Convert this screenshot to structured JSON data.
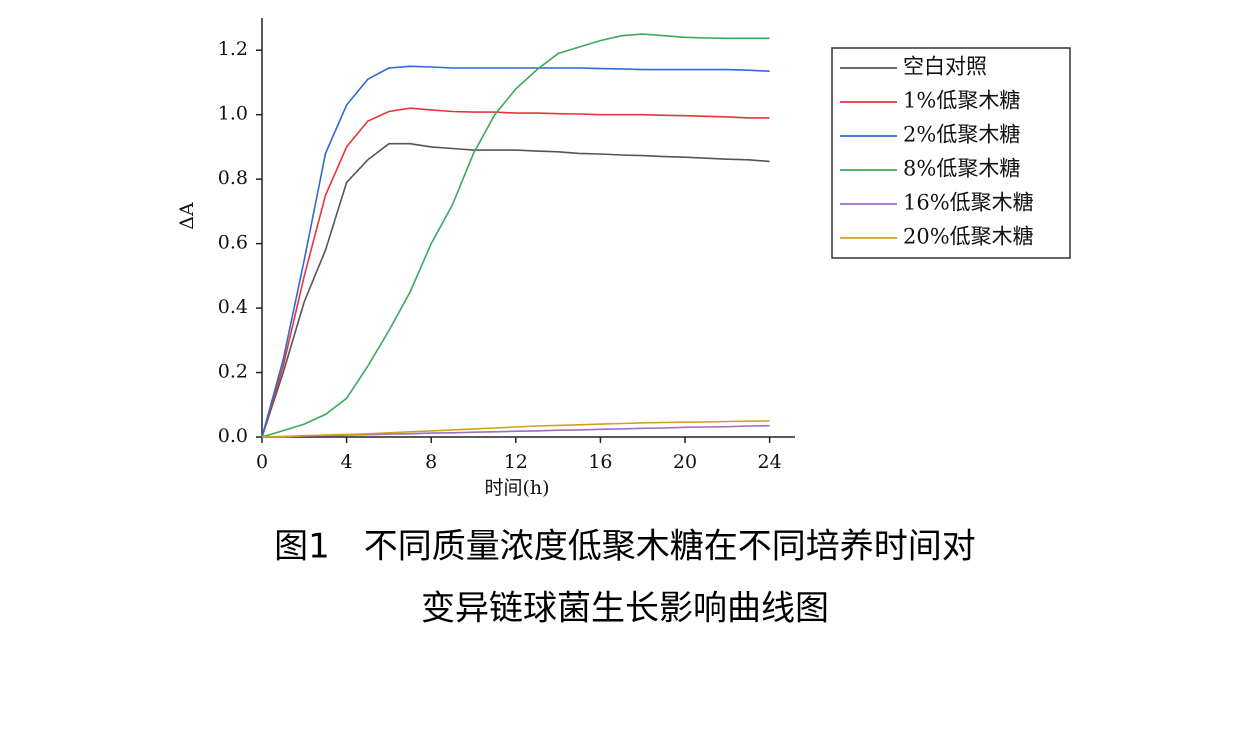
{
  "chart_data": {
    "type": "line",
    "xlabel": "时间(h)",
    "ylabel": "ΔA",
    "x": [
      0,
      1,
      2,
      3,
      4,
      5,
      6,
      7,
      8,
      9,
      10,
      11,
      12,
      13,
      14,
      15,
      16,
      17,
      18,
      19,
      20,
      21,
      22,
      23,
      24
    ],
    "xlim": [
      0,
      25.2
    ],
    "ylim": [
      0,
      1.3
    ],
    "xticks": [
      0,
      4,
      8,
      12,
      16,
      20,
      24
    ],
    "yticks": [
      {
        "value": 0,
        "label": "0.0"
      },
      {
        "value": 0.2,
        "label": "0.2"
      },
      {
        "value": 0.4,
        "label": "0.4"
      },
      {
        "value": 0.6,
        "label": "0.6"
      },
      {
        "value": 0.8,
        "label": "0.8"
      },
      {
        "value": 1.0,
        "label": "1.0"
      },
      {
        "value": 1.2,
        "label": "1.2"
      }
    ],
    "series": [
      {
        "name": "空白对照",
        "color": "#555555",
        "values": [
          0,
          0.2,
          0.42,
          0.58,
          0.79,
          0.86,
          0.91,
          0.91,
          0.9,
          0.895,
          0.89,
          0.89,
          0.89,
          0.887,
          0.885,
          0.88,
          0.878,
          0.875,
          0.873,
          0.87,
          0.868,
          0.865,
          0.862,
          0.86,
          0.855
        ]
      },
      {
        "name": "1%低聚木糖",
        "color": "#e8343a",
        "values": [
          0,
          0.22,
          0.5,
          0.75,
          0.9,
          0.98,
          1.01,
          1.02,
          1.015,
          1.01,
          1.008,
          1.008,
          1.005,
          1.005,
          1.003,
          1.002,
          1.0,
          1.0,
          1.0,
          0.998,
          0.997,
          0.995,
          0.993,
          0.99,
          0.99
        ]
      },
      {
        "name": "2%低聚木糖",
        "color": "#2f6ad0",
        "values": [
          0,
          0.24,
          0.55,
          0.88,
          1.03,
          1.11,
          1.145,
          1.15,
          1.148,
          1.145,
          1.145,
          1.145,
          1.145,
          1.145,
          1.145,
          1.145,
          1.143,
          1.142,
          1.14,
          1.14,
          1.14,
          1.14,
          1.14,
          1.138,
          1.135
        ]
      },
      {
        "name": "8%低聚木糖",
        "color": "#3aaa5a",
        "values": [
          0,
          0.02,
          0.04,
          0.07,
          0.12,
          0.22,
          0.33,
          0.45,
          0.6,
          0.72,
          0.88,
          1.0,
          1.08,
          1.14,
          1.19,
          1.21,
          1.23,
          1.245,
          1.25,
          1.245,
          1.24,
          1.238,
          1.237,
          1.237,
          1.237
        ]
      },
      {
        "name": "16%低聚木糖",
        "color": "#9b6fc4",
        "values": [
          0,
          0.001,
          0.003,
          0.004,
          0.006,
          0.007,
          0.009,
          0.01,
          0.012,
          0.013,
          0.015,
          0.016,
          0.018,
          0.019,
          0.021,
          0.022,
          0.024,
          0.025,
          0.027,
          0.028,
          0.03,
          0.031,
          0.032,
          0.034,
          0.035
        ]
      },
      {
        "name": "20%低聚木糖",
        "color": "#d4a020",
        "values": [
          0,
          0.002,
          0.004,
          0.006,
          0.008,
          0.01,
          0.013,
          0.016,
          0.019,
          0.022,
          0.025,
          0.028,
          0.031,
          0.034,
          0.036,
          0.038,
          0.04,
          0.042,
          0.044,
          0.045,
          0.046,
          0.047,
          0.048,
          0.049,
          0.05
        ]
      }
    ],
    "caption": [
      "图1　不同质量浓度低聚木糖在不同培养时间对",
      "变异链球菌生长影响曲线图"
    ]
  }
}
